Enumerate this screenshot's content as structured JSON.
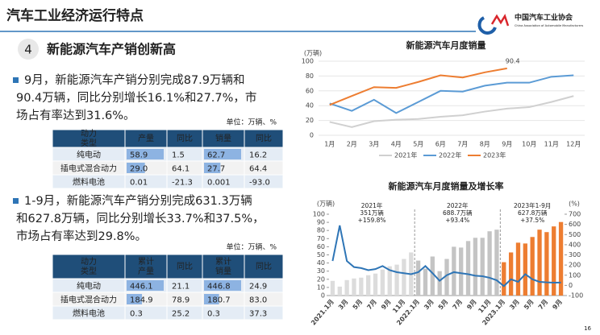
{
  "header": {
    "title": "汽车工业经济运行特点",
    "logo_cn": "中国汽车工业协会",
    "logo_en": "China Association of Automobile Manufacturers"
  },
  "section": {
    "number": "4",
    "title": "新能源汽车产销创新高"
  },
  "bullets": [
    {
      "lines": [
        "9月，新能源汽车产销分别完成87.9万辆和",
        "90.4万辆，同比分别增长16.1%和27.7%，市",
        "场占有率达到31.6%。"
      ]
    },
    {
      "lines": [
        "1-9月，新能源汽车产销分别完成631.3万辆",
        "和627.8万辆，同比分别增长33.7%和37.5%，",
        "市场占有率达到29.8%。"
      ]
    }
  ],
  "tables": [
    {
      "unit": "单位：万辆、%",
      "header": [
        "动力类型",
        "产量",
        "同比",
        "销量",
        "同比"
      ],
      "rows": [
        [
          "纯电动",
          "58.9",
          "1.5",
          "62.7",
          "16.2"
        ],
        [
          "插电式混合动力",
          "29.0",
          "64.1",
          "27.7",
          "64.4"
        ],
        [
          "燃料电池",
          "0.01",
          "-21.3",
          "0.001",
          "-93.0"
        ]
      ]
    },
    {
      "unit": "单位：万辆、%",
      "header": [
        "动力类型",
        "累计产量",
        "同比",
        "累计销量",
        "同比"
      ],
      "rows": [
        [
          "纯电动",
          "446.1",
          "21.1",
          "446.8",
          "24.9"
        ],
        [
          "插电式混合动力",
          "184.9",
          "78.9",
          "180.7",
          "83.0"
        ],
        [
          "燃料电池",
          "0.3",
          "25.2",
          "0.3",
          "37.3"
        ]
      ]
    }
  ],
  "chart_data": [
    {
      "type": "line",
      "title": "新能源汽车月度销量",
      "y_unit": "(万辆)",
      "categories": [
        "1月",
        "2月",
        "3月",
        "4月",
        "5月",
        "6月",
        "7月",
        "8月",
        "9月",
        "10月",
        "11月",
        "12月"
      ],
      "ylim": [
        0,
        100
      ],
      "yticks": [
        0,
        20,
        40,
        60,
        80,
        100
      ],
      "series": [
        {
          "name": "2021年",
          "color": "#d0d0d0",
          "values": [
            18,
            11,
            19,
            21,
            22,
            25,
            27,
            32,
            36,
            38,
            45,
            53
          ]
        },
        {
          "name": "2022年",
          "color": "#5b9bd5",
          "values": [
            43,
            33,
            48,
            30,
            45,
            60,
            59,
            67,
            71,
            71,
            79,
            81
          ]
        },
        {
          "name": "2023年",
          "color": "#ed7d31",
          "values": [
            41,
            53,
            65,
            64,
            72,
            81,
            78,
            85,
            90.4,
            null,
            null,
            null
          ]
        }
      ],
      "annotation": "90.4",
      "legend": "bottom"
    },
    {
      "type": "combo",
      "title": "新能源汽车月度销量及增长率",
      "y_unit": "(万辆)",
      "y2_unit": "(%)",
      "categories": [
        "2021.1月",
        null,
        "3月",
        null,
        "5月",
        null,
        "7月",
        null,
        "9月",
        null,
        "11月",
        null,
        "2022.1月",
        null,
        "3月",
        null,
        "5月",
        null,
        "7月",
        null,
        "9月",
        null,
        "11月",
        null,
        "2023.1月",
        null,
        "3月",
        null,
        "5月",
        null,
        "7月",
        null,
        "9月"
      ],
      "ylim": [
        0,
        100
      ],
      "yticks": [
        0,
        10,
        20,
        30,
        40,
        50,
        60,
        70,
        80,
        90,
        100
      ],
      "y2lim": [
        -100,
        700
      ],
      "y2ticks": [
        -100,
        0,
        100,
        200,
        300,
        400,
        500,
        600,
        700
      ],
      "bars": {
        "values": [
          18,
          11,
          19,
          21,
          22,
          25,
          27,
          32,
          36,
          38,
          45,
          53,
          43,
          33,
          48,
          30,
          45,
          60,
          59,
          67,
          71,
          71,
          79,
          81,
          41,
          53,
          65,
          64,
          72,
          81,
          78,
          85,
          90.4
        ],
        "colors": [
          "#dcdcdc",
          "#dcdcdc",
          "#dcdcdc",
          "#dcdcdc",
          "#dcdcdc",
          "#dcdcdc",
          "#dcdcdc",
          "#dcdcdc",
          "#dcdcdc",
          "#dcdcdc",
          "#dcdcdc",
          "#dcdcdc",
          "#c4c4c4",
          "#c4c4c4",
          "#c4c4c4",
          "#c4c4c4",
          "#c4c4c4",
          "#c4c4c4",
          "#c4c4c4",
          "#c4c4c4",
          "#c4c4c4",
          "#c4c4c4",
          "#c4c4c4",
          "#c4c4c4",
          "#ed7d31",
          "#ed7d31",
          "#ed7d31",
          "#ed7d31",
          "#ed7d31",
          "#ed7d31",
          "#ed7d31",
          "#ed7d31",
          "#ed7d31"
        ]
      },
      "line": {
        "axis": "y2",
        "color": "#2e75b6",
        "values": [
          240,
          590,
          240,
          180,
          170,
          150,
          160,
          190,
          150,
          130,
          120,
          110,
          130,
          190,
          120,
          45,
          100,
          130,
          120,
          110,
          95,
          90,
          75,
          50,
          -7,
          60,
          35,
          110,
          60,
          35,
          30,
          27,
          28
        ]
      },
      "annotations": [
        {
          "lines": [
            "2021年",
            "351万辆",
            "+159.8%"
          ]
        },
        {
          "lines": [
            "2022年",
            "688.7万辆",
            "+93.4%"
          ]
        },
        {
          "lines": [
            "2023年1-9月",
            "627.8万辆",
            "+37.5%"
          ]
        }
      ]
    }
  ],
  "page_number": "16"
}
